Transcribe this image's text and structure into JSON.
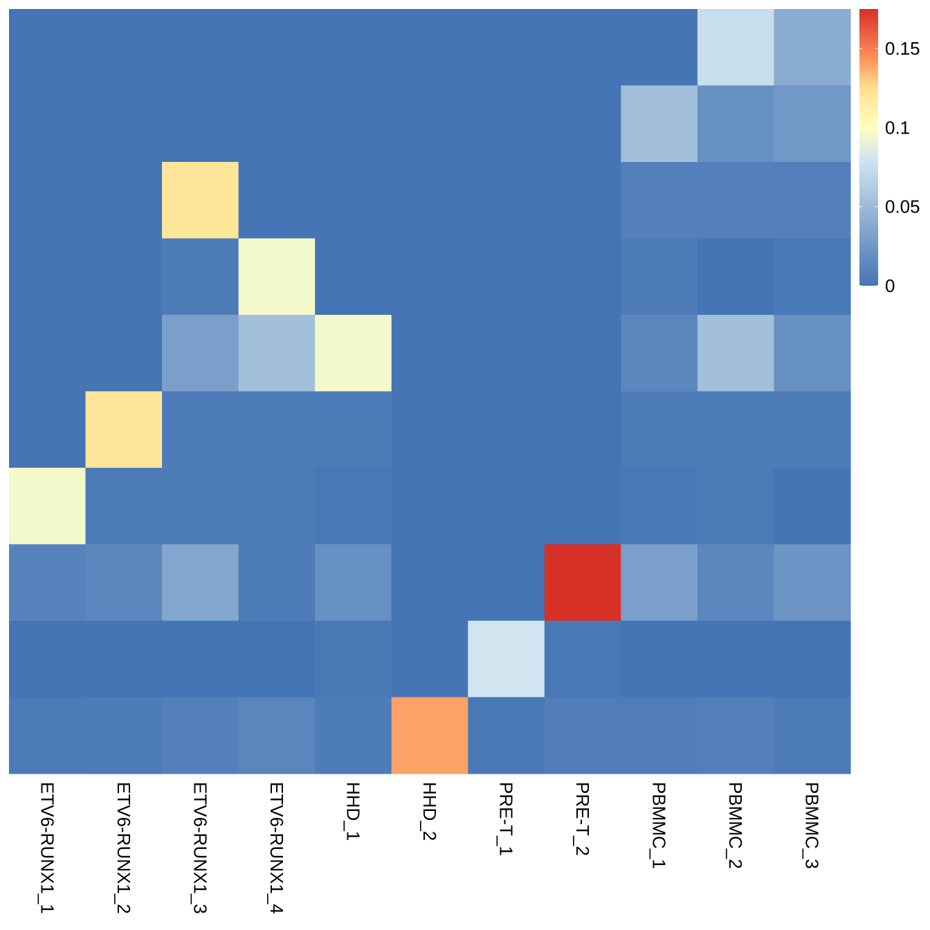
{
  "chart_data": {
    "type": "heatmap",
    "title": "",
    "xlabel": "",
    "ylabel": "",
    "columns": [
      "ETV6-RUNX1_1",
      "ETV6-RUNX1_2",
      "ETV6-RUNX1_3",
      "ETV6-RUNX1_4",
      "HHD_1",
      "HHD_2",
      "PRE-T_1",
      "PRE-T_2",
      "PBMMC_1",
      "PBMMC_2",
      "PBMMC_3"
    ],
    "row_count": 10,
    "values": [
      [
        0.0,
        0.0,
        0.0,
        0.0,
        0.0,
        0.0,
        0.0,
        0.0,
        0.0,
        0.075,
        0.04
      ],
      [
        0.0,
        0.0,
        0.0,
        0.0,
        0.0,
        0.0,
        0.0,
        0.0,
        0.053,
        0.02,
        0.025
      ],
      [
        0.0,
        0.0,
        0.12,
        0.0,
        0.0,
        0.0,
        0.0,
        0.0,
        0.008,
        0.008,
        0.008
      ],
      [
        0.0,
        0.0,
        0.005,
        0.095,
        0.0,
        0.0,
        0.0,
        0.0,
        0.005,
        0.0,
        0.002
      ],
      [
        0.0,
        0.0,
        0.03,
        0.053,
        0.095,
        0.0,
        0.0,
        0.0,
        0.013,
        0.053,
        0.02
      ],
      [
        0.0,
        0.12,
        0.005,
        0.005,
        0.004,
        0.0,
        0.0,
        0.0,
        0.005,
        0.005,
        0.005
      ],
      [
        0.095,
        0.004,
        0.004,
        0.004,
        0.002,
        0.0,
        0.0,
        0.0,
        0.002,
        0.004,
        0.0
      ],
      [
        0.01,
        0.013,
        0.035,
        0.005,
        0.02,
        0.0,
        0.0,
        0.175,
        0.03,
        0.013,
        0.022
      ],
      [
        0.0,
        0.0,
        0.0,
        0.0,
        0.003,
        0.0,
        0.08,
        0.002,
        0.0,
        0.0,
        0.0
      ],
      [
        0.004,
        0.005,
        0.008,
        0.012,
        0.005,
        0.14,
        0.002,
        0.006,
        0.006,
        0.008,
        0.004
      ]
    ],
    "color_scale": {
      "min": 0,
      "max": 0.175,
      "stops": [
        [
          0.0,
          "#4575b4"
        ],
        [
          0.08,
          "#d1e5f0"
        ],
        [
          0.1,
          "#ffffbf"
        ],
        [
          0.125,
          "#fee090"
        ],
        [
          0.145,
          "#fc8d59"
        ],
        [
          0.175,
          "#d73027"
        ]
      ]
    },
    "legend": {
      "position": "right",
      "ticks": [
        {
          "value": 0,
          "label": "0"
        },
        {
          "value": 0.05,
          "label": "0.05"
        },
        {
          "value": 0.1,
          "label": "0.1"
        },
        {
          "value": 0.15,
          "label": "0.15"
        }
      ]
    }
  }
}
